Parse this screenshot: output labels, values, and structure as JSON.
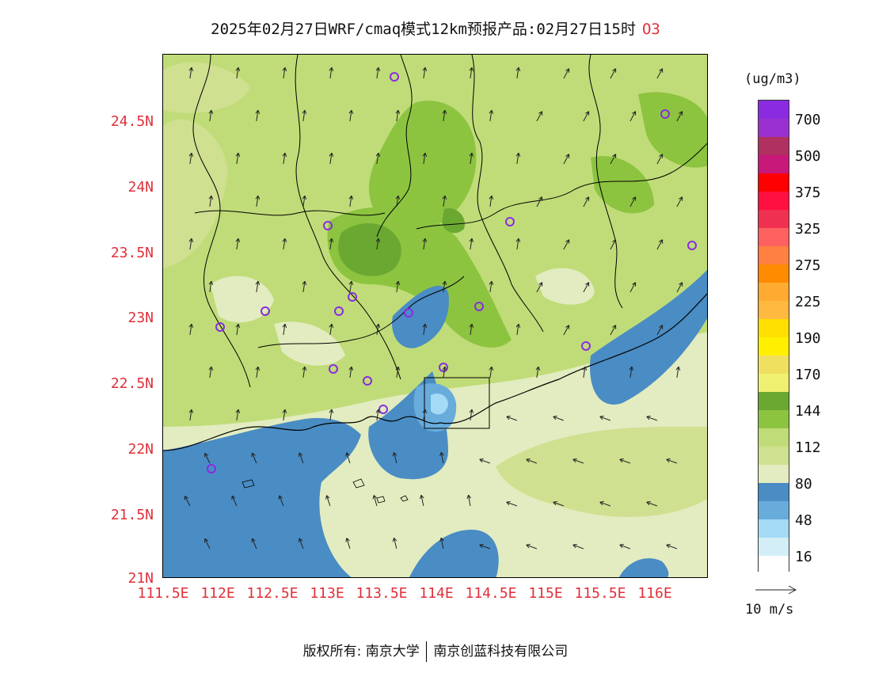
{
  "title": {
    "text": "2025年02月27日WRF/cmaq模式12km预报产品:02月27日15时",
    "species": "O3"
  },
  "map": {
    "lat_ticks": [
      "24.5N",
      "24N",
      "23.5N",
      "23N",
      "22.5N",
      "22N",
      "21.5N",
      "21N"
    ],
    "lon_ticks": [
      "111.5E",
      "112E",
      "112.5E",
      "113E",
      "113.5E",
      "114E",
      "114.5E",
      "115E",
      "115.5E",
      "116E"
    ],
    "stations_icon": "circle-marker-icon",
    "wind_icon": "wind-arrow-icon"
  },
  "legend": {
    "unit": "(ug/m3)",
    "colors": [
      "#8a2be2",
      "#9b30d0",
      "#b03060",
      "#c8187a",
      "#ff0000",
      "#ff1040",
      "#f03050",
      "#ff6060",
      "#ff8040",
      "#ff8c00",
      "#ffaa30",
      "#ffb840",
      "#ffe000",
      "#fff000",
      "#f0e060",
      "#f0f070",
      "#6aa832",
      "#8cc440",
      "#c0dc78",
      "#cfe090",
      "#e2ecc0",
      "#4a8cc4",
      "#68acdc",
      "#a4daf4",
      "#d4eef8",
      "#ffffff"
    ],
    "labels": [
      "700",
      "500",
      "375",
      "325",
      "275",
      "225",
      "190",
      "170",
      "144",
      "112",
      "80",
      "48",
      "16"
    ]
  },
  "wind_reference": {
    "label": "10 m/s"
  },
  "footer": {
    "left": "版权所有: 南京大学",
    "right": "南京创蓝科技有限公司"
  }
}
